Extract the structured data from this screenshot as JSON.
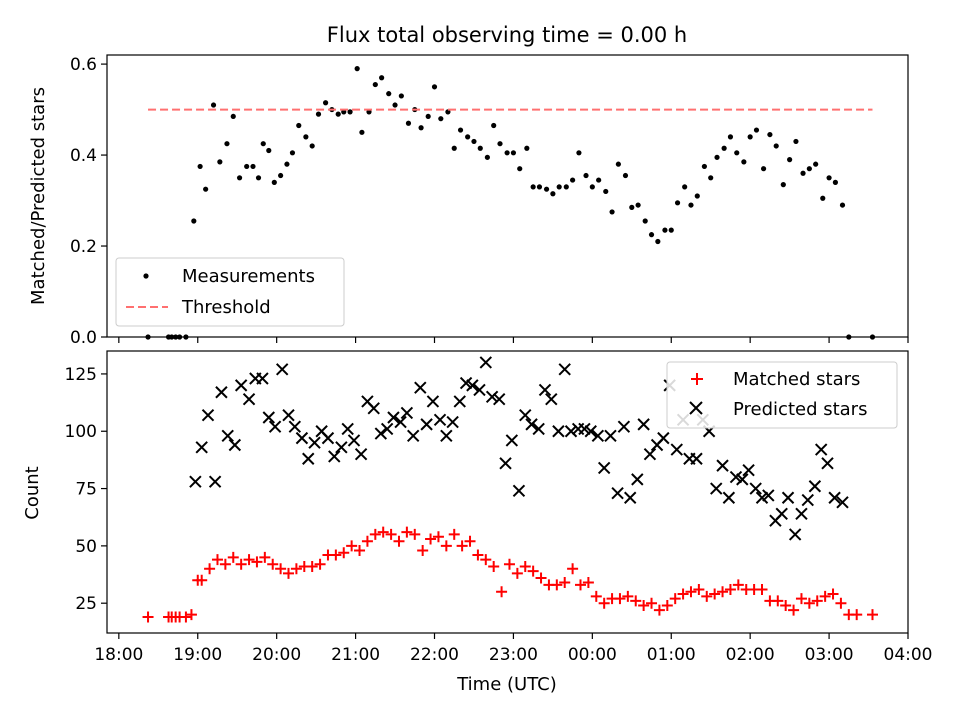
{
  "title": "Flux total observing time = 0.00 h",
  "colors": {
    "measurement": "#000000",
    "threshold": "#ff7070",
    "matched": "#ff0000",
    "predicted": "#000000"
  },
  "chart_data": [
    {
      "type": "scatter",
      "ylabel": "Matched/Predicted stars",
      "xlabel": "",
      "ylim": [
        0,
        0.62
      ],
      "xlim_hours": [
        17.85,
        28.0
      ],
      "yticks": [
        {
          "value": 0.0,
          "label": "0.0"
        },
        {
          "value": 0.2,
          "label": "0.2"
        },
        {
          "value": 0.4,
          "label": "0.4"
        },
        {
          "value": 0.6,
          "label": "0.6"
        }
      ],
      "legend_position": "lower-left",
      "series": [
        {
          "name": "Measurements",
          "marker": "dot",
          "x_hours": [
            18.37,
            18.63,
            18.67,
            18.72,
            18.77,
            18.85,
            18.95,
            19.03,
            19.1,
            19.2,
            19.28,
            19.37,
            19.45,
            19.53,
            19.62,
            19.7,
            19.77,
            19.83,
            19.9,
            19.97,
            20.05,
            20.13,
            20.2,
            20.28,
            20.37,
            20.45,
            20.53,
            20.62,
            20.7,
            20.78,
            20.85,
            20.93,
            21.02,
            21.08,
            21.17,
            21.25,
            21.33,
            21.42,
            21.5,
            21.58,
            21.67,
            21.75,
            21.83,
            21.92,
            22.0,
            22.08,
            22.17,
            22.25,
            22.33,
            22.42,
            22.5,
            22.58,
            22.67,
            22.75,
            22.83,
            22.92,
            23.0,
            23.08,
            23.17,
            23.25,
            23.33,
            23.42,
            23.5,
            23.58,
            23.67,
            23.75,
            23.83,
            23.92,
            24.0,
            24.08,
            24.17,
            24.25,
            24.33,
            24.42,
            24.5,
            24.58,
            24.67,
            24.75,
            24.83,
            24.92,
            25.0,
            25.08,
            25.17,
            25.25,
            25.33,
            25.42,
            25.5,
            25.58,
            25.67,
            25.75,
            25.83,
            25.92,
            26.0,
            26.08,
            26.17,
            26.25,
            26.33,
            26.42,
            26.5,
            26.58,
            26.67,
            26.75,
            26.83,
            26.92,
            27.0,
            27.08,
            27.17,
            27.25,
            27.55
          ],
          "y": [
            0.0,
            0.0,
            0.0,
            0.0,
            0.0,
            0.0,
            0.255,
            0.375,
            0.325,
            0.51,
            0.385,
            0.425,
            0.485,
            0.35,
            0.375,
            0.375,
            0.35,
            0.425,
            0.41,
            0.34,
            0.355,
            0.38,
            0.405,
            0.465,
            0.44,
            0.42,
            0.49,
            0.515,
            0.5,
            0.49,
            0.495,
            0.495,
            0.59,
            0.45,
            0.495,
            0.555,
            0.57,
            0.535,
            0.51,
            0.53,
            0.47,
            0.5,
            0.46,
            0.485,
            0.55,
            0.48,
            0.495,
            0.415,
            0.455,
            0.44,
            0.43,
            0.415,
            0.395,
            0.465,
            0.425,
            0.405,
            0.405,
            0.37,
            0.415,
            0.33,
            0.33,
            0.325,
            0.315,
            0.33,
            0.33,
            0.345,
            0.405,
            0.355,
            0.33,
            0.345,
            0.32,
            0.275,
            0.38,
            0.355,
            0.285,
            0.29,
            0.255,
            0.225,
            0.21,
            0.235,
            0.235,
            0.295,
            0.33,
            0.29,
            0.31,
            0.375,
            0.35,
            0.395,
            0.415,
            0.44,
            0.405,
            0.385,
            0.44,
            0.455,
            0.37,
            0.445,
            0.42,
            0.335,
            0.39,
            0.43,
            0.36,
            0.37,
            0.38,
            0.305,
            0.35,
            0.34,
            0.29,
            0.0,
            0.0
          ]
        },
        {
          "name": "Threshold",
          "marker": "dashed-line",
          "x_hours": [
            18.37,
            27.55
          ],
          "y": [
            0.5,
            0.5
          ]
        }
      ]
    },
    {
      "type": "scatter",
      "ylabel": "Count",
      "xlabel": "Time (UTC)",
      "ylim": [
        12,
        135
      ],
      "xlim_hours": [
        17.85,
        28.0
      ],
      "yticks": [
        {
          "value": 25,
          "label": "25"
        },
        {
          "value": 50,
          "label": "50"
        },
        {
          "value": 75,
          "label": "75"
        },
        {
          "value": 100,
          "label": "100"
        },
        {
          "value": 125,
          "label": "125"
        }
      ],
      "xticks": [
        {
          "value": 18,
          "label": "18:00"
        },
        {
          "value": 19,
          "label": "19:00"
        },
        {
          "value": 20,
          "label": "20:00"
        },
        {
          "value": 21,
          "label": "21:00"
        },
        {
          "value": 22,
          "label": "22:00"
        },
        {
          "value": 23,
          "label": "23:00"
        },
        {
          "value": 24,
          "label": "00:00"
        },
        {
          "value": 25,
          "label": "01:00"
        },
        {
          "value": 26,
          "label": "02:00"
        },
        {
          "value": 27,
          "label": "03:00"
        },
        {
          "value": 28,
          "label": "04:00"
        }
      ],
      "legend_position": "upper-right",
      "series": [
        {
          "name": "Matched stars",
          "marker": "plus",
          "x_hours": [
            18.37,
            18.63,
            18.67,
            18.72,
            18.77,
            18.85,
            18.92,
            19.0,
            19.05,
            19.15,
            19.25,
            19.35,
            19.45,
            19.55,
            19.65,
            19.75,
            19.85,
            19.95,
            20.05,
            20.15,
            20.25,
            20.35,
            20.45,
            20.55,
            20.65,
            20.75,
            20.85,
            20.95,
            21.05,
            21.15,
            21.25,
            21.35,
            21.45,
            21.55,
            21.65,
            21.75,
            21.85,
            21.95,
            22.05,
            22.15,
            22.25,
            22.35,
            22.45,
            22.55,
            22.65,
            22.75,
            22.85,
            22.95,
            23.05,
            23.15,
            23.25,
            23.35,
            23.45,
            23.55,
            23.65,
            23.75,
            23.85,
            23.95,
            24.05,
            24.15,
            24.25,
            24.35,
            24.45,
            24.55,
            24.65,
            24.75,
            24.85,
            24.95,
            25.05,
            25.15,
            25.25,
            25.35,
            25.45,
            25.55,
            25.65,
            25.75,
            25.85,
            25.95,
            26.05,
            26.15,
            26.25,
            26.35,
            26.45,
            26.55,
            26.65,
            26.75,
            26.85,
            26.95,
            27.05,
            27.15,
            27.25,
            27.35,
            27.55
          ],
          "y": [
            19,
            19,
            19,
            19,
            19,
            19,
            20,
            35,
            35,
            40,
            44,
            42,
            45,
            42,
            44,
            43,
            45,
            42,
            40,
            38,
            40,
            41,
            41,
            42,
            46,
            46,
            47,
            50,
            48,
            52,
            55,
            56,
            55,
            52,
            56,
            55,
            48,
            53,
            54,
            50,
            55,
            50,
            52,
            46,
            44,
            41,
            30,
            42,
            38,
            41,
            39,
            36,
            33,
            33,
            34,
            40,
            33,
            34,
            28,
            25,
            27,
            27,
            28,
            26,
            24,
            25,
            22,
            24,
            27,
            29,
            30,
            31,
            28,
            29,
            30,
            31,
            33,
            31,
            31,
            31,
            26,
            26,
            24,
            22,
            27,
            25,
            26,
            28,
            29,
            25,
            20,
            20,
            20
          ]
        },
        {
          "name": "Predicted stars",
          "marker": "x",
          "x_hours": [
            18.97,
            19.05,
            19.13,
            19.22,
            19.3,
            19.38,
            19.47,
            19.55,
            19.65,
            19.73,
            19.82,
            19.9,
            19.98,
            20.07,
            20.15,
            20.23,
            20.32,
            20.4,
            20.48,
            20.57,
            20.65,
            20.73,
            20.82,
            20.9,
            20.98,
            21.07,
            21.15,
            21.23,
            21.32,
            21.4,
            21.48,
            21.57,
            21.65,
            21.73,
            21.82,
            21.9,
            21.98,
            22.07,
            22.15,
            22.23,
            22.32,
            22.4,
            22.48,
            22.57,
            22.65,
            22.73,
            22.82,
            22.9,
            22.98,
            23.07,
            23.15,
            23.23,
            23.32,
            23.4,
            23.48,
            23.57,
            23.65,
            23.73,
            23.82,
            23.9,
            23.98,
            24.07,
            24.15,
            24.23,
            24.32,
            24.4,
            24.48,
            24.57,
            24.65,
            24.73,
            24.82,
            24.9,
            24.98,
            25.07,
            25.15,
            25.23,
            25.32,
            25.4,
            25.48,
            25.57,
            25.65,
            25.73,
            25.82,
            25.9,
            25.98,
            26.07,
            26.15,
            26.23,
            26.32,
            26.4,
            26.48,
            26.57,
            26.65,
            26.73,
            26.82,
            26.9,
            26.98,
            27.07,
            27.17
          ],
          "y": [
            78,
            93,
            107,
            78,
            117,
            98,
            94,
            120,
            114,
            123,
            123,
            106,
            102,
            127,
            107,
            102,
            97,
            88,
            95,
            100,
            97,
            89,
            93,
            101,
            96,
            90,
            113,
            110,
            99,
            101,
            106,
            104,
            108,
            98,
            119,
            103,
            113,
            105,
            98,
            104,
            113,
            121,
            120,
            118,
            130,
            115,
            114,
            86,
            96,
            74,
            107,
            103,
            101,
            118,
            114,
            100,
            127,
            100,
            101,
            101,
            100,
            98,
            84,
            98,
            73,
            102,
            71,
            79,
            103,
            90,
            94,
            97,
            120,
            92,
            105,
            88,
            88,
            105,
            100,
            75,
            85,
            71,
            80,
            79,
            83,
            75,
            71,
            72,
            61,
            64,
            71,
            55,
            64,
            70,
            76,
            92,
            86,
            71,
            69
          ]
        }
      ]
    }
  ]
}
